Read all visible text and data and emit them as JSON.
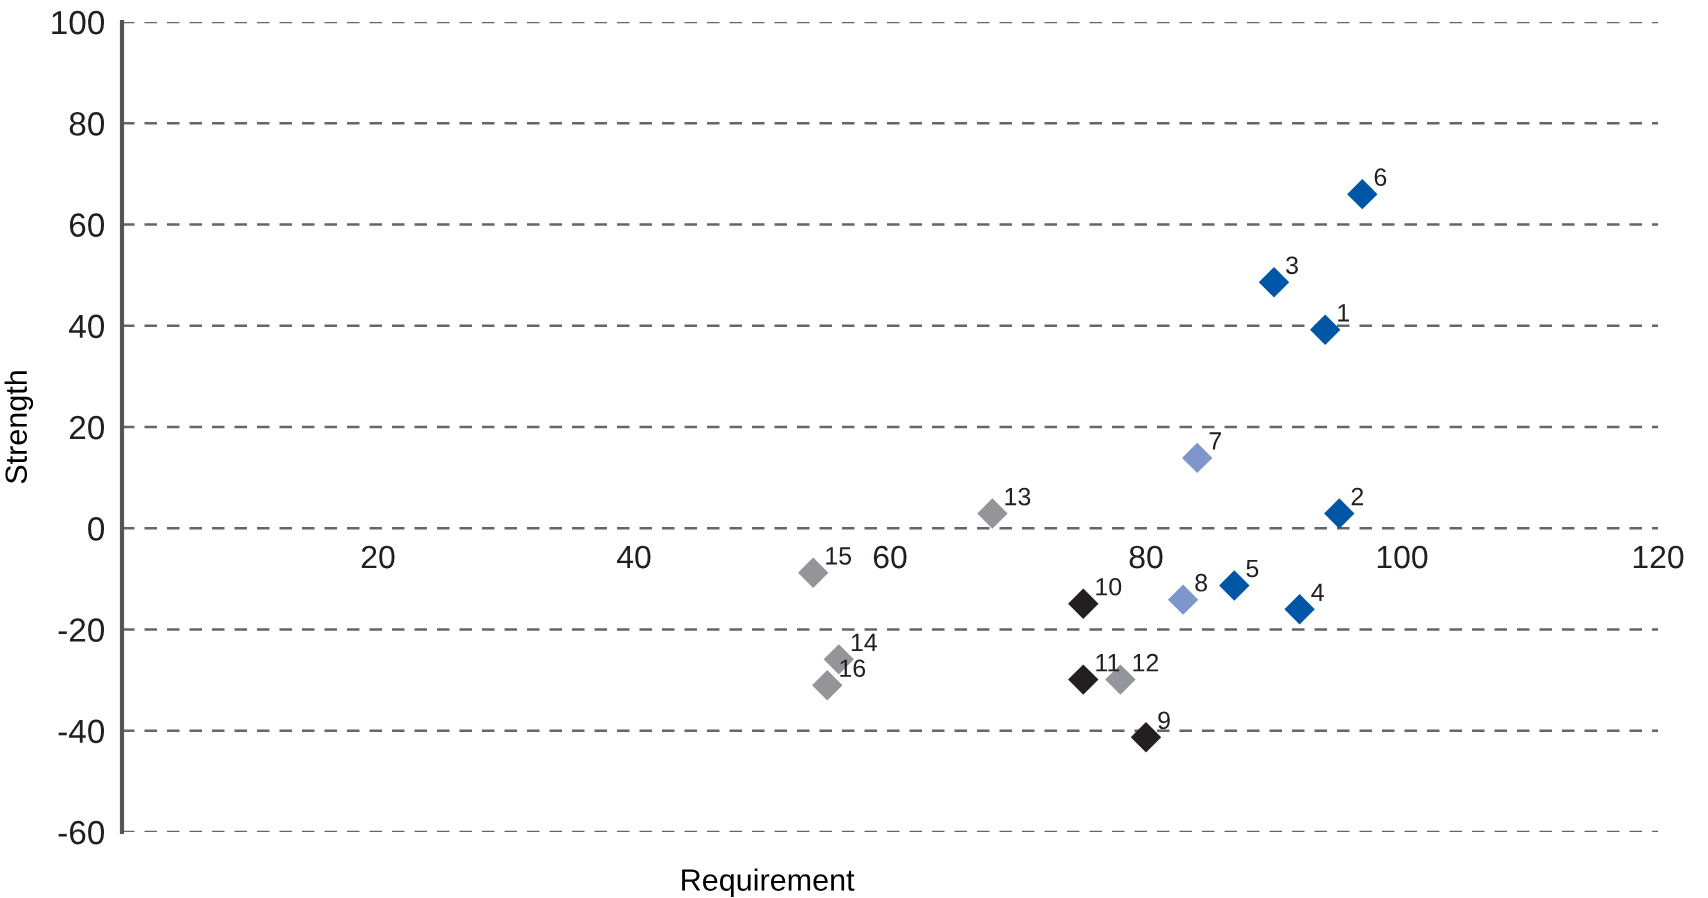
{
  "chart_data": {
    "type": "scatter",
    "xlabel": "Requirement",
    "ylabel": "Strength",
    "marker": "diamond",
    "grid": "y",
    "xlim": [
      0,
      120
    ],
    "xticks": [
      20,
      40,
      60,
      80,
      100,
      120
    ],
    "ylim": [
      -60,
      100
    ],
    "yticks": [
      -60,
      -40,
      -20,
      0,
      20,
      40,
      60,
      80,
      100
    ],
    "series": [
      {
        "color": "#0056a6",
        "x": [
          94.0,
          95.1,
          90.0,
          92.0,
          86.9,
          96.9
        ],
        "values": [
          39.2,
          2.9,
          48.6,
          -16.0,
          -11.3,
          66.0
        ]
      },
      {
        "color": "#7f96cc",
        "x": [
          84.0,
          82.9
        ],
        "values": [
          13.9,
          -14.1
        ]
      },
      {
        "color": "#231f20",
        "x": [
          80.0,
          75.1,
          75.1
        ],
        "values": [
          -41.3,
          -14.9,
          -29.9
        ]
      },
      {
        "color": "#939598",
        "x": [
          78.0,
          68.0,
          56.0,
          54.0,
          55.1
        ],
        "values": [
          -29.9,
          2.9,
          -25.9,
          -8.8,
          -31.0
        ]
      }
    ],
    "annotations": [
      {
        "text": "1",
        "x": 94.0,
        "y": 39.2
      },
      {
        "text": "2",
        "x": 95.1,
        "y": 2.9
      },
      {
        "text": "3",
        "x": 90.0,
        "y": 48.6
      },
      {
        "text": "4",
        "x": 92.0,
        "y": -16.0
      },
      {
        "text": "5",
        "x": 86.9,
        "y": -11.3
      },
      {
        "text": "6",
        "x": 96.9,
        "y": 66.0
      },
      {
        "text": "7",
        "x": 84.0,
        "y": 13.9
      },
      {
        "text": "8",
        "x": 82.9,
        "y": -14.1
      },
      {
        "text": "9",
        "x": 80.0,
        "y": -41.3
      },
      {
        "text": "10",
        "x": 75.1,
        "y": -14.9
      },
      {
        "text": "11",
        "x": 75.1,
        "y": -29.9
      },
      {
        "text": "12",
        "x": 78.0,
        "y": -29.9
      },
      {
        "text": "13",
        "x": 68.0,
        "y": 2.9
      },
      {
        "text": "14",
        "x": 56.0,
        "y": -25.9
      },
      {
        "text": "15",
        "x": 54.0,
        "y": -8.8
      },
      {
        "text": "16",
        "x": 55.1,
        "y": -31.0
      }
    ]
  }
}
